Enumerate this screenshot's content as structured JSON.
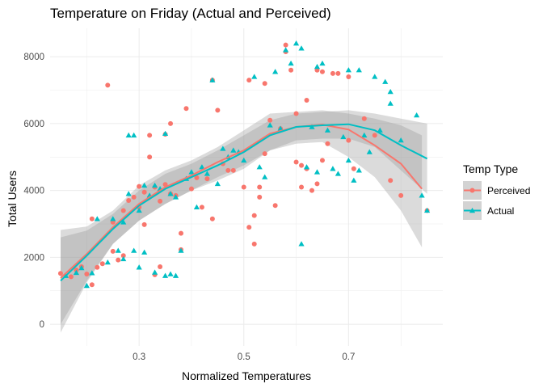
{
  "chart_data": {
    "type": "scatter",
    "title": "Temperature on Friday (Actual and Perceived)",
    "xlabel": "Normalized Temperatures",
    "ylabel": "Total Users",
    "xlim": [
      0.13,
      0.88
    ],
    "ylim": [
      -650,
      8850
    ],
    "x_ticks": [
      0.3,
      0.5,
      0.7
    ],
    "y_ticks": [
      0,
      2000,
      4000,
      6000,
      8000
    ],
    "grid": true,
    "legend": {
      "title": "Temp Type",
      "position": "right",
      "entries": [
        {
          "label": "Perceived",
          "color": "#F8766D",
          "marker": "circle"
        },
        {
          "label": "Actual",
          "color": "#00BFC4",
          "marker": "triangle"
        }
      ]
    },
    "series": [
      {
        "name": "Perceived",
        "color": "#F8766D",
        "marker": "circle",
        "points": [
          [
            0.15,
            1520
          ],
          [
            0.17,
            1420
          ],
          [
            0.18,
            1620
          ],
          [
            0.19,
            1720
          ],
          [
            0.2,
            1500
          ],
          [
            0.21,
            3150
          ],
          [
            0.21,
            1180
          ],
          [
            0.22,
            1700
          ],
          [
            0.23,
            1810
          ],
          [
            0.24,
            7150
          ],
          [
            0.25,
            3050
          ],
          [
            0.25,
            2180
          ],
          [
            0.26,
            1920
          ],
          [
            0.27,
            2050
          ],
          [
            0.27,
            3400
          ],
          [
            0.28,
            3700
          ],
          [
            0.29,
            3800
          ],
          [
            0.3,
            3500
          ],
          [
            0.3,
            4120
          ],
          [
            0.31,
            2980
          ],
          [
            0.31,
            3950
          ],
          [
            0.32,
            5000
          ],
          [
            0.32,
            5650
          ],
          [
            0.33,
            1480
          ],
          [
            0.33,
            4100
          ],
          [
            0.34,
            1720
          ],
          [
            0.34,
            3680
          ],
          [
            0.35,
            5680
          ],
          [
            0.35,
            4180
          ],
          [
            0.36,
            6000
          ],
          [
            0.36,
            3900
          ],
          [
            0.37,
            3850
          ],
          [
            0.38,
            2230
          ],
          [
            0.38,
            2720
          ],
          [
            0.39,
            6450
          ],
          [
            0.4,
            4050
          ],
          [
            0.41,
            4380
          ],
          [
            0.42,
            3500
          ],
          [
            0.43,
            4350
          ],
          [
            0.44,
            7300
          ],
          [
            0.44,
            3150
          ],
          [
            0.45,
            6400
          ],
          [
            0.46,
            4800
          ],
          [
            0.47,
            4600
          ],
          [
            0.48,
            4600
          ],
          [
            0.5,
            4100
          ],
          [
            0.51,
            7300
          ],
          [
            0.51,
            2900
          ],
          [
            0.52,
            2400
          ],
          [
            0.52,
            3250
          ],
          [
            0.53,
            4100
          ],
          [
            0.53,
            3800
          ],
          [
            0.54,
            7200
          ],
          [
            0.54,
            5100
          ],
          [
            0.55,
            6100
          ],
          [
            0.56,
            3550
          ],
          [
            0.57,
            5850
          ],
          [
            0.58,
            8350
          ],
          [
            0.58,
            8150
          ],
          [
            0.59,
            7600
          ],
          [
            0.6,
            6300
          ],
          [
            0.6,
            4850
          ],
          [
            0.61,
            4750
          ],
          [
            0.61,
            4100
          ],
          [
            0.62,
            6700
          ],
          [
            0.62,
            4650
          ],
          [
            0.63,
            4000
          ],
          [
            0.64,
            7600
          ],
          [
            0.64,
            4200
          ],
          [
            0.65,
            7550
          ],
          [
            0.65,
            4900
          ],
          [
            0.66,
            5400
          ],
          [
            0.67,
            7500
          ],
          [
            0.68,
            7500
          ],
          [
            0.7,
            7400
          ],
          [
            0.7,
            5500
          ],
          [
            0.71,
            4650
          ],
          [
            0.73,
            6150
          ],
          [
            0.75,
            5650
          ],
          [
            0.78,
            4300
          ],
          [
            0.8,
            3850
          ],
          [
            0.85,
            3400
          ]
        ],
        "trend": [
          [
            0.15,
            1380
          ],
          [
            0.2,
            2100
          ],
          [
            0.25,
            2900
          ],
          [
            0.3,
            3600
          ],
          [
            0.35,
            4100
          ],
          [
            0.4,
            4450
          ],
          [
            0.45,
            4850
          ],
          [
            0.5,
            5200
          ],
          [
            0.55,
            5700
          ],
          [
            0.6,
            5900
          ],
          [
            0.65,
            5970
          ],
          [
            0.7,
            5820
          ],
          [
            0.75,
            5350
          ],
          [
            0.8,
            4800
          ],
          [
            0.84,
            4050
          ]
        ],
        "band_upper": [
          [
            0.15,
            2820
          ],
          [
            0.2,
            2920
          ],
          [
            0.25,
            3400
          ],
          [
            0.3,
            4150
          ],
          [
            0.35,
            4600
          ],
          [
            0.4,
            4900
          ],
          [
            0.45,
            5300
          ],
          [
            0.5,
            5800
          ],
          [
            0.55,
            6300
          ],
          [
            0.6,
            6350
          ],
          [
            0.65,
            6400
          ],
          [
            0.7,
            6300
          ],
          [
            0.75,
            6150
          ],
          [
            0.8,
            5950
          ],
          [
            0.84,
            5650
          ]
        ],
        "band_lower": [
          [
            0.15,
            -250
          ],
          [
            0.2,
            1250
          ],
          [
            0.25,
            2400
          ],
          [
            0.3,
            3100
          ],
          [
            0.35,
            3600
          ],
          [
            0.4,
            4000
          ],
          [
            0.45,
            4400
          ],
          [
            0.5,
            4750
          ],
          [
            0.55,
            5200
          ],
          [
            0.6,
            5400
          ],
          [
            0.65,
            5450
          ],
          [
            0.7,
            5000
          ],
          [
            0.75,
            4400
          ],
          [
            0.8,
            3400
          ],
          [
            0.84,
            2300
          ]
        ]
      },
      {
        "name": "Actual",
        "color": "#00BFC4",
        "marker": "triangle",
        "points": [
          [
            0.16,
            1450
          ],
          [
            0.18,
            1540
          ],
          [
            0.19,
            1680
          ],
          [
            0.2,
            1150
          ],
          [
            0.21,
            1530
          ],
          [
            0.22,
            3150
          ],
          [
            0.24,
            1850
          ],
          [
            0.25,
            3150
          ],
          [
            0.26,
            2200
          ],
          [
            0.27,
            1950
          ],
          [
            0.27,
            3050
          ],
          [
            0.28,
            3900
          ],
          [
            0.28,
            5650
          ],
          [
            0.29,
            2200
          ],
          [
            0.29,
            5650
          ],
          [
            0.3,
            3400
          ],
          [
            0.3,
            1700
          ],
          [
            0.31,
            4150
          ],
          [
            0.31,
            2150
          ],
          [
            0.32,
            3850
          ],
          [
            0.33,
            4150
          ],
          [
            0.33,
            1550
          ],
          [
            0.34,
            4050
          ],
          [
            0.35,
            5700
          ],
          [
            0.35,
            1450
          ],
          [
            0.36,
            3900
          ],
          [
            0.36,
            1500
          ],
          [
            0.37,
            1450
          ],
          [
            0.37,
            3800
          ],
          [
            0.38,
            2200
          ],
          [
            0.39,
            4350
          ],
          [
            0.4,
            4550
          ],
          [
            0.41,
            3500
          ],
          [
            0.42,
            4700
          ],
          [
            0.43,
            4500
          ],
          [
            0.44,
            7300
          ],
          [
            0.45,
            4200
          ],
          [
            0.46,
            5250
          ],
          [
            0.47,
            5000
          ],
          [
            0.48,
            5200
          ],
          [
            0.49,
            5150
          ],
          [
            0.5,
            4900
          ],
          [
            0.52,
            7400
          ],
          [
            0.53,
            4700
          ],
          [
            0.54,
            4400
          ],
          [
            0.55,
            5950
          ],
          [
            0.56,
            7550
          ],
          [
            0.57,
            5850
          ],
          [
            0.58,
            8200
          ],
          [
            0.59,
            7800
          ],
          [
            0.6,
            8400
          ],
          [
            0.61,
            2400
          ],
          [
            0.61,
            8250
          ],
          [
            0.62,
            4700
          ],
          [
            0.63,
            5900
          ],
          [
            0.64,
            7700
          ],
          [
            0.64,
            4550
          ],
          [
            0.65,
            7800
          ],
          [
            0.66,
            5800
          ],
          [
            0.67,
            4650
          ],
          [
            0.68,
            4500
          ],
          [
            0.69,
            5600
          ],
          [
            0.7,
            7600
          ],
          [
            0.7,
            4900
          ],
          [
            0.71,
            4300
          ],
          [
            0.72,
            7600
          ],
          [
            0.72,
            4600
          ],
          [
            0.73,
            5650
          ],
          [
            0.74,
            5150
          ],
          [
            0.75,
            7400
          ],
          [
            0.76,
            5800
          ],
          [
            0.77,
            7250
          ],
          [
            0.78,
            6950
          ],
          [
            0.78,
            6600
          ],
          [
            0.8,
            5500
          ],
          [
            0.83,
            6250
          ],
          [
            0.84,
            3850
          ],
          [
            0.85,
            3400
          ]
        ],
        "trend": [
          [
            0.15,
            1300
          ],
          [
            0.2,
            2050
          ],
          [
            0.25,
            2850
          ],
          [
            0.3,
            3550
          ],
          [
            0.35,
            4050
          ],
          [
            0.4,
            4400
          ],
          [
            0.45,
            4750
          ],
          [
            0.5,
            5150
          ],
          [
            0.55,
            5650
          ],
          [
            0.6,
            5900
          ],
          [
            0.65,
            5950
          ],
          [
            0.7,
            5980
          ],
          [
            0.75,
            5800
          ],
          [
            0.8,
            5350
          ],
          [
            0.85,
            4950
          ]
        ],
        "band_upper": [
          [
            0.15,
            2600
          ],
          [
            0.2,
            2800
          ],
          [
            0.25,
            3300
          ],
          [
            0.3,
            4000
          ],
          [
            0.35,
            4500
          ],
          [
            0.4,
            4800
          ],
          [
            0.45,
            5200
          ],
          [
            0.5,
            5650
          ],
          [
            0.55,
            6100
          ],
          [
            0.6,
            6300
          ],
          [
            0.65,
            6350
          ],
          [
            0.7,
            6400
          ],
          [
            0.75,
            6300
          ],
          [
            0.8,
            6150
          ],
          [
            0.85,
            6000
          ]
        ],
        "band_lower": [
          [
            0.15,
            0
          ],
          [
            0.2,
            1300
          ],
          [
            0.25,
            2400
          ],
          [
            0.3,
            3100
          ],
          [
            0.35,
            3600
          ],
          [
            0.4,
            4000
          ],
          [
            0.45,
            4300
          ],
          [
            0.5,
            4650
          ],
          [
            0.55,
            5200
          ],
          [
            0.6,
            5500
          ],
          [
            0.65,
            5550
          ],
          [
            0.7,
            5550
          ],
          [
            0.75,
            5300
          ],
          [
            0.8,
            4600
          ],
          [
            0.85,
            3900
          ]
        ]
      }
    ]
  }
}
